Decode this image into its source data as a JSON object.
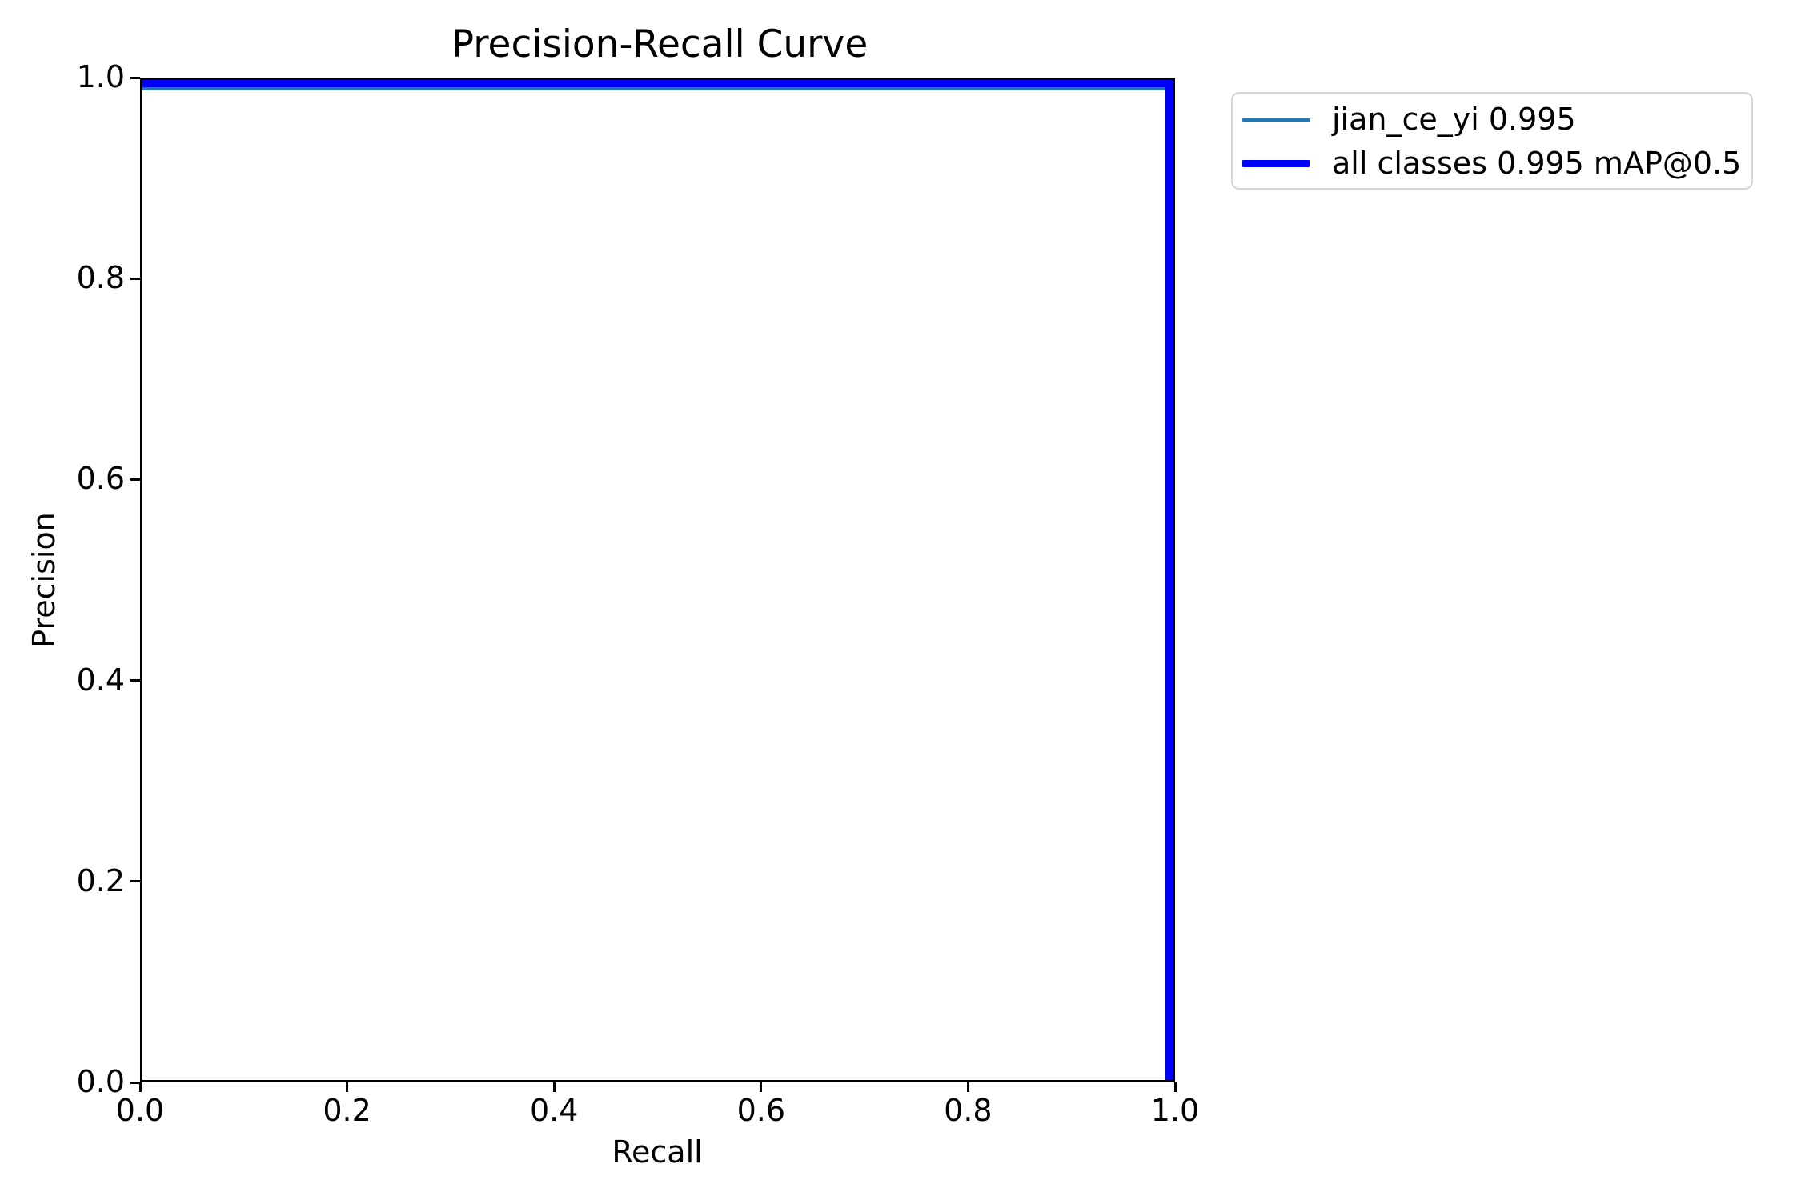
{
  "chart_data": {
    "type": "line",
    "title": "Precision-Recall Curve",
    "xlabel": "Recall",
    "ylabel": "Precision",
    "xlim": [
      0.0,
      1.0
    ],
    "ylim": [
      0.0,
      1.0
    ],
    "x_ticks": [
      "0.0",
      "0.2",
      "0.4",
      "0.6",
      "0.8",
      "1.0"
    ],
    "y_ticks": [
      "0.0",
      "0.2",
      "0.4",
      "0.6",
      "0.8",
      "1.0"
    ],
    "grid": false,
    "axis_color": "#000000",
    "legend": {
      "position": "outside-upper-right",
      "entries": [
        {
          "label": "jian_ce_yi 0.995",
          "color": "#1f77b4",
          "line_weight": "thin"
        },
        {
          "label": "all classes 0.995 mAP@0.5",
          "color": "#0000ff",
          "line_weight": "thick"
        }
      ]
    },
    "series": [
      {
        "name": "jian_ce_yi",
        "ap": 0.995,
        "color": "#1f77b4",
        "line_weight": "thin",
        "x": [
          0.0,
          0.997,
          0.997
        ],
        "y": [
          0.991,
          0.991,
          0.0
        ]
      },
      {
        "name": "all classes",
        "map_at_0_5": 0.995,
        "color": "#0000ff",
        "line_weight": "thick",
        "x": [
          0.0,
          1.0,
          1.0
        ],
        "y": [
          1.0,
          1.0,
          0.0
        ]
      }
    ]
  }
}
